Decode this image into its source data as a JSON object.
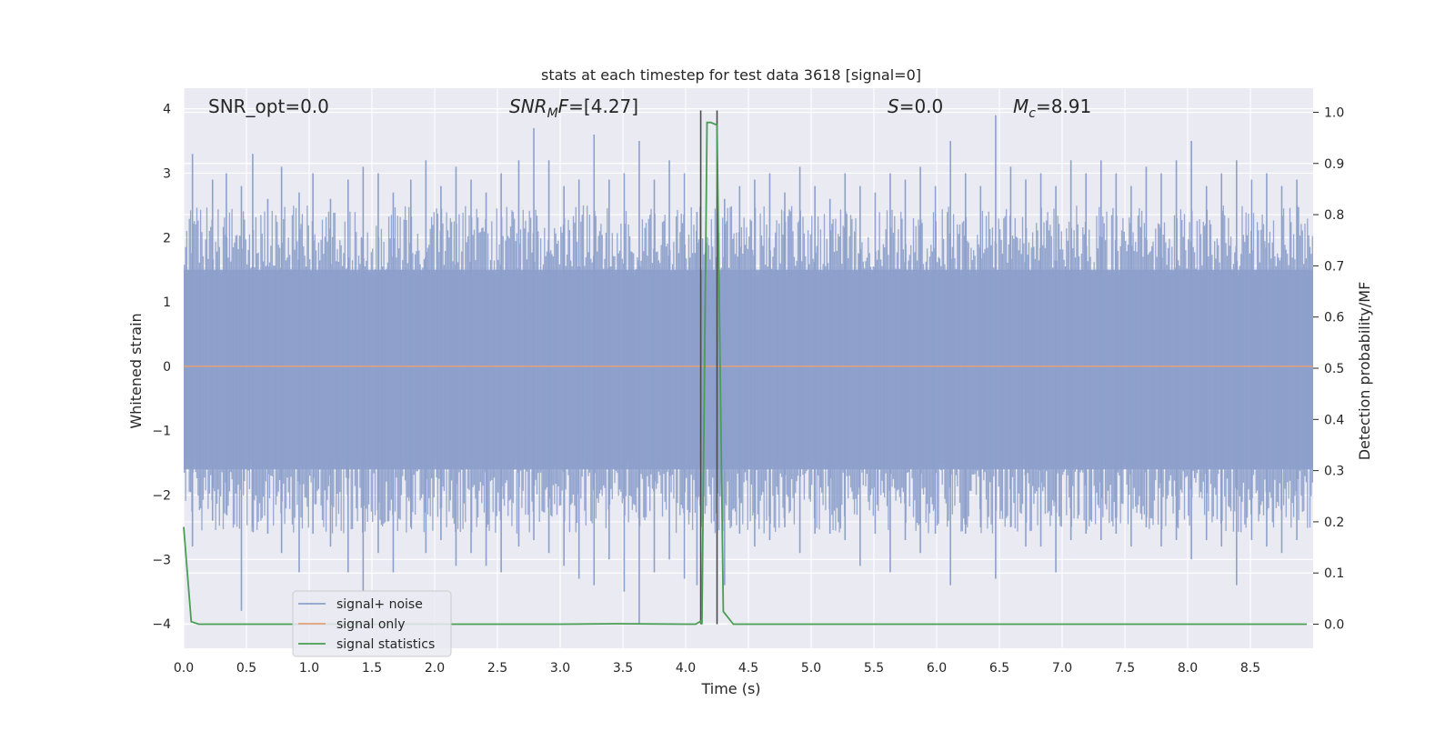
{
  "chart_data": {
    "type": "line",
    "title": "stats at each timestep for test data 3618 [signal=0]",
    "xlabel": "Time (s)",
    "ylabel": "Whitened strain",
    "ylabel_right": "Detection probability/MF",
    "xlim": [
      0.0,
      9.0
    ],
    "ylim": [
      -4.38,
      4.32
    ],
    "ylim_right": [
      -0.047,
      1.047
    ],
    "x_ticks": [
      "0.0",
      "0.5",
      "1.0",
      "1.5",
      "2.0",
      "2.5",
      "3.0",
      "3.5",
      "4.0",
      "4.5",
      "5.0",
      "5.5",
      "6.0",
      "6.5",
      "7.0",
      "7.5",
      "8.0",
      "8.5"
    ],
    "y_ticks": [
      "−4",
      "−3",
      "−2",
      "−1",
      "0",
      "1",
      "2",
      "3",
      "4"
    ],
    "y_ticks_right": [
      "0.0",
      "0.1",
      "0.2",
      "0.3",
      "0.4",
      "0.5",
      "0.6",
      "0.7",
      "0.8",
      "0.9",
      "1.0"
    ],
    "grid": true,
    "legend_position": "lower-left",
    "annotations": {
      "snr_opt": "SNR_opt=0.0",
      "snr_mf_base": "SNR",
      "snr_mf_sub": "M",
      "snr_mf_rest": "F=[4.27]",
      "s_sym": "S",
      "s_val": "=0.0",
      "mc_base": "M",
      "mc_sub": "c",
      "mc_val": "=8.91"
    },
    "vertical_lines_x": [
      4.12,
      4.25
    ],
    "series": [
      {
        "name": "signal+ noise",
        "color": "#8da0cb",
        "noise_peaks": {
          "x": [
            0.07,
            0.23,
            0.34,
            0.46,
            0.55,
            0.67,
            0.78,
            0.92,
            1.03,
            1.17,
            1.31,
            1.43,
            1.55,
            1.67,
            1.81,
            1.93,
            2.05,
            2.17,
            2.29,
            2.41,
            2.53,
            2.67,
            2.79,
            2.91,
            3.03,
            3.15,
            3.27,
            3.39,
            3.51,
            3.63,
            3.75,
            3.87,
            3.99,
            4.09,
            4.31,
            4.43,
            4.55,
            4.67,
            4.79,
            4.91,
            5.03,
            5.15,
            5.27,
            5.39,
            5.51,
            5.63,
            5.75,
            5.87,
            5.99,
            6.11,
            6.23,
            6.35,
            6.47,
            6.59,
            6.71,
            6.83,
            6.95,
            7.07,
            7.19,
            7.31,
            7.43,
            7.55,
            7.67,
            7.79,
            7.91,
            8.03,
            8.15,
            8.27,
            8.39,
            8.51,
            8.63,
            8.75,
            8.87
          ],
          "y_max": [
            3.3,
            2.9,
            3.0,
            2.8,
            3.3,
            2.6,
            3.1,
            2.7,
            3.0,
            2.6,
            2.9,
            3.1,
            3.0,
            2.7,
            2.9,
            3.2,
            2.8,
            3.1,
            2.9,
            2.7,
            3.0,
            3.2,
            3.7,
            3.2,
            2.8,
            2.9,
            3.6,
            2.9,
            3.0,
            3.5,
            2.9,
            3.2,
            3.0,
            2.4,
            2.6,
            2.8,
            2.9,
            3.0,
            2.7,
            3.1,
            2.8,
            2.6,
            3.0,
            2.8,
            2.7,
            3.0,
            2.9,
            3.1,
            2.8,
            3.5,
            3.0,
            2.8,
            3.9,
            3.1,
            2.9,
            3.0,
            2.8,
            3.2,
            3.0,
            3.2,
            3.0,
            2.8,
            3.1,
            3.0,
            3.2,
            3.5,
            2.8,
            3.0,
            3.2,
            2.9,
            3.0,
            2.8,
            2.9
          ],
          "y_min": [
            -2.8,
            -2.4,
            -2.3,
            -3.8,
            -2.5,
            -2.6,
            -2.9,
            -3.2,
            -2.6,
            -2.8,
            -3.2,
            -3.5,
            -2.9,
            -3.2,
            -2.5,
            -2.9,
            -2.7,
            -3.1,
            -2.9,
            -3.1,
            -3.2,
            -2.8,
            -2.7,
            -2.9,
            -3.1,
            -3.3,
            -3.4,
            -3.0,
            -3.5,
            -4.0,
            -3.2,
            -3.0,
            -3.3,
            -3.4,
            -3.4,
            -2.6,
            -2.8,
            -2.7,
            -2.5,
            -2.9,
            -2.6,
            -2.6,
            -2.7,
            -3.1,
            -2.6,
            -3.2,
            -2.7,
            -2.9,
            -2.6,
            -3.4,
            -2.6,
            -2.5,
            -3.3,
            -2.5,
            -2.8,
            -2.8,
            -3.2,
            -2.7,
            -2.6,
            -2.7,
            -2.6,
            -2.8,
            -2.5,
            -2.8,
            -2.7,
            -3.0,
            -2.7,
            -2.8,
            -3.4,
            -2.7,
            -2.8,
            -2.9,
            -2.7
          ]
        },
        "envelope_upper": 1.5,
        "envelope_lower": -1.6
      },
      {
        "name": "signal only",
        "color": "#e5a07a",
        "x": [
          0.0,
          9.0
        ],
        "y": [
          0.0,
          0.0
        ]
      },
      {
        "name": "signal statistics",
        "color": "#4a9d55",
        "axis": "right",
        "x": [
          0.0,
          0.06,
          0.12,
          0.2,
          1.0,
          2.0,
          3.0,
          3.45,
          4.0,
          4.08,
          4.12,
          4.13,
          4.17,
          4.2,
          4.25,
          4.3,
          4.38,
          5.0,
          6.0,
          7.0,
          8.0,
          8.95
        ],
        "y": [
          0.19,
          0.005,
          0.0,
          0.0,
          0.0,
          0.0,
          0.0,
          0.001,
          0.0,
          0.0,
          0.006,
          0.0,
          0.98,
          0.98,
          0.975,
          0.025,
          0.0,
          0.0,
          0.0,
          0.0,
          0.0,
          0.0
        ]
      }
    ]
  }
}
